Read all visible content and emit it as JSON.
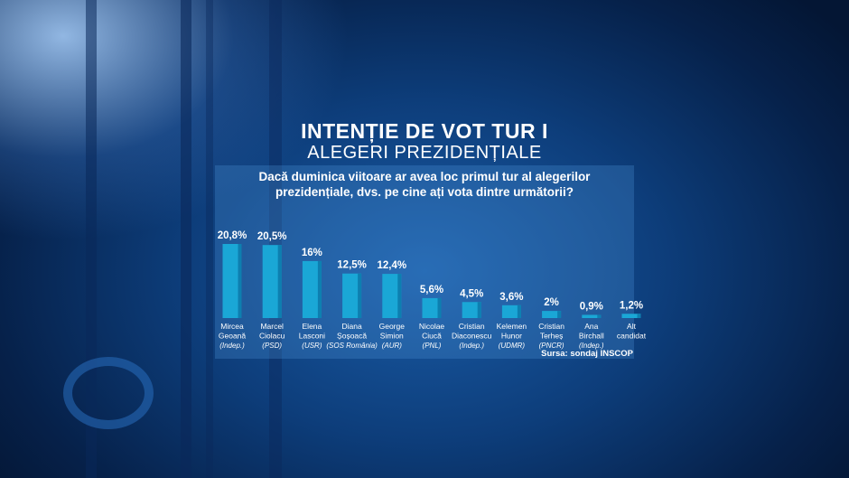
{
  "title": "INTENȚIE DE VOT TUR I",
  "subtitle": "ALEGERI PREZIDENȚIALE",
  "question": {
    "line1": "Dacă duminica viitoare ar avea loc primul tur al alegerilor",
    "line2": "prezidențiale, dvs. pe cine ați vota dintre următorii?"
  },
  "source": "Sursa: sondaj INSCOP",
  "colors": {
    "bar": "#1aa7d6",
    "bar_dark": "#0d7fb0",
    "text": "#ffffff"
  },
  "chart_data": {
    "type": "bar",
    "categories": [
      {
        "name": [
          "Mircea",
          "Geoană"
        ],
        "party": "(Indep.)"
      },
      {
        "name": [
          "Marcel",
          "Ciolacu"
        ],
        "party": "(PSD)"
      },
      {
        "name": [
          "Elena",
          "Lasconi"
        ],
        "party": "(USR)"
      },
      {
        "name": [
          "Diana",
          "Șoșoacă"
        ],
        "party": "(SOS România)"
      },
      {
        "name": [
          "George",
          "Simion"
        ],
        "party": "(AUR)"
      },
      {
        "name": [
          "Nicolae",
          "Ciucă"
        ],
        "party": "(PNL)"
      },
      {
        "name": [
          "Cristian",
          "Diaconescu"
        ],
        "party": "(Indep.)"
      },
      {
        "name": [
          "Kelemen",
          "Hunor"
        ],
        "party": "(UDMR)"
      },
      {
        "name": [
          "Cristian",
          "Terheș"
        ],
        "party": "(PNCR)"
      },
      {
        "name": [
          "Ana",
          "Birchall"
        ],
        "party": "(Indep.)"
      },
      {
        "name": [
          "Alt",
          "candidat"
        ],
        "party": ""
      }
    ],
    "values": [
      20.8,
      20.5,
      16,
      12.5,
      12.4,
      5.6,
      4.5,
      3.6,
      2,
      0.9,
      1.2
    ],
    "labels": [
      "20,8%",
      "20,5%",
      "16%",
      "12,5%",
      "12,4%",
      "5,6%",
      "4,5%",
      "3,6%",
      "2%",
      "0,9%",
      "1,2%"
    ],
    "ylim": [
      0,
      20.8
    ]
  }
}
